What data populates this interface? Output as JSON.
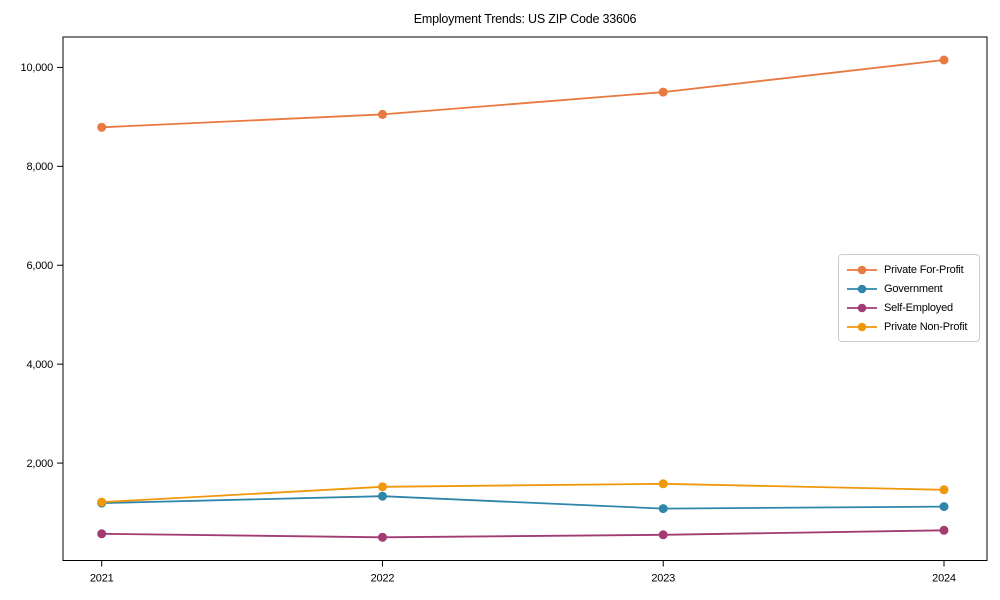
{
  "chart_data": {
    "type": "line",
    "title": "Employment Trends: US ZIP Code 33606",
    "x": [
      "2021",
      "2022",
      "2023",
      "2024"
    ],
    "series": [
      {
        "name": "Private For-Profit",
        "color": "#E8793F",
        "values": [
          8790,
          9050,
          9500,
          10150
        ]
      },
      {
        "name": "Government",
        "color": "#2E86AB",
        "values": [
          1190,
          1330,
          1080,
          1120
        ]
      },
      {
        "name": "Self-Employed",
        "color": "#A23B72",
        "values": [
          570,
          500,
          550,
          640
        ]
      },
      {
        "name": "Private Non-Profit",
        "color": "#F0980B",
        "values": [
          1210,
          1520,
          1580,
          1460
        ]
      }
    ],
    "xlabel": "",
    "ylabel": "",
    "ylim": [
      30,
      10615
    ],
    "yticks": [
      2000,
      4000,
      6000,
      8000,
      10000
    ],
    "ytick_labels": [
      "2,000",
      "4,000",
      "6,000",
      "8,000",
      "10,000"
    ],
    "grid": false,
    "legend_position": "center right",
    "frame_color": "#000000",
    "background_color": "#ffffff"
  }
}
